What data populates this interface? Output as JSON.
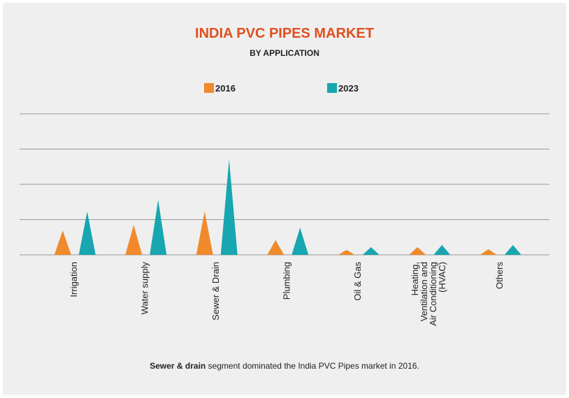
{
  "chart_data": {
    "type": "spike",
    "title": "INDIA PVC PIPES MARKET",
    "subtitle": "BY APPLICATION",
    "categories": [
      "Irrigation",
      "Water supply",
      "Sewer & Drain",
      "Plumbing",
      "Oil & Gas",
      "Heating, Ventilation and Air Conditioning (HVAC)",
      "Others"
    ],
    "series": [
      {
        "name": "2016",
        "color": "#f08a2c",
        "values": [
          0.69,
          0.85,
          1.23,
          0.42,
          0.14,
          0.22,
          0.16
        ]
      },
      {
        "name": "2023",
        "color": "#18a6b0",
        "values": [
          1.23,
          1.56,
          2.71,
          0.77,
          0.22,
          0.28,
          0.28
        ]
      }
    ],
    "ylim": [
      0,
      4
    ],
    "yticks": [
      0,
      1,
      2,
      3,
      4
    ],
    "grid": true,
    "footnote": {
      "bold": "Sewer & drain",
      "text": " segment dominated the India PVC Pipes market in 2016."
    }
  }
}
